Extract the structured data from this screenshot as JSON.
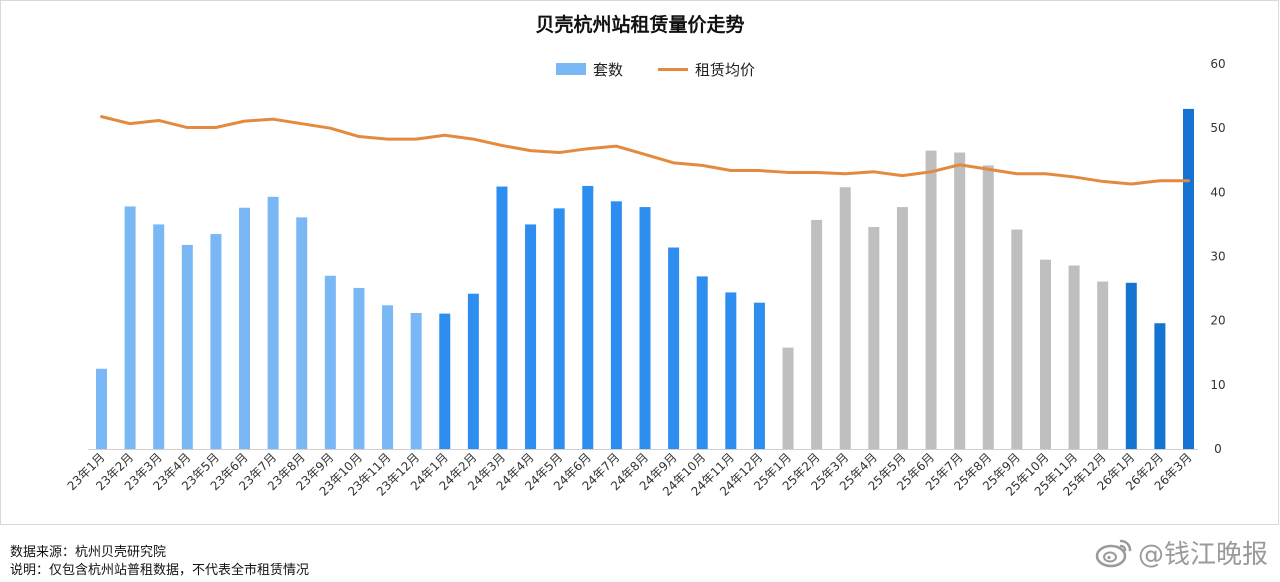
{
  "chart_data": {
    "type": "bar",
    "title": "贝壳杭州站租赁量价走势",
    "xlabel": "",
    "ylabel": "",
    "categories": [
      "23年1月",
      "23年2月",
      "23年3月",
      "23年4月",
      "23年5月",
      "23年6月",
      "23年7月",
      "23年8月",
      "23年9月",
      "23年10月",
      "23年11月",
      "23年12月",
      "24年1月",
      "24年2月",
      "24年3月",
      "24年4月",
      "24年5月",
      "24年6月",
      "24年7月",
      "24年8月",
      "24年9月",
      "24年10月",
      "24年11月",
      "24年12月",
      "25年1月",
      "25年2月",
      "25年3月",
      "25年4月",
      "25年5月",
      "25年6月",
      "25年7月",
      "25年8月",
      "25年9月",
      "25年10月",
      "25年11月",
      "25年12月",
      "26年1月",
      "26年2月",
      "26年3月"
    ],
    "series": [
      {
        "name": "套数",
        "type": "bar",
        "values": [
          12.5,
          37.8,
          35.0,
          31.8,
          33.5,
          37.6,
          39.3,
          36.1,
          27.0,
          25.1,
          22.4,
          21.2,
          21.1,
          24.2,
          40.9,
          35.0,
          37.5,
          41.0,
          38.6,
          37.7,
          31.4,
          26.9,
          24.4,
          22.8,
          15.8,
          35.7,
          40.8,
          34.6,
          37.7,
          46.5,
          46.2,
          44.2,
          34.2,
          29.5,
          28.6,
          26.1,
          25.9,
          19.6,
          53.0
        ],
        "colors": [
          "#7ab8f5",
          "#7ab8f5",
          "#7ab8f5",
          "#7ab8f5",
          "#7ab8f5",
          "#7ab8f5",
          "#7ab8f5",
          "#7ab8f5",
          "#7ab8f5",
          "#7ab8f5",
          "#7ab8f5",
          "#7ab8f5",
          "#2e8ef0",
          "#2e8ef0",
          "#2e8ef0",
          "#2e8ef0",
          "#2e8ef0",
          "#2e8ef0",
          "#2e8ef0",
          "#2e8ef0",
          "#2e8ef0",
          "#2e8ef0",
          "#2e8ef0",
          "#2e8ef0",
          "#bfbfbf",
          "#bfbfbf",
          "#bfbfbf",
          "#bfbfbf",
          "#bfbfbf",
          "#bfbfbf",
          "#bfbfbf",
          "#bfbfbf",
          "#bfbfbf",
          "#bfbfbf",
          "#bfbfbf",
          "#bfbfbf",
          "#1573d1",
          "#1573d1",
          "#1573d1"
        ]
      },
      {
        "name": "租赁均价",
        "type": "line",
        "color": "#e38a3f",
        "values": [
          51.8,
          50.7,
          51.2,
          50.1,
          50.1,
          51.1,
          51.4,
          50.7,
          50.0,
          48.7,
          48.3,
          48.3,
          48.9,
          48.3,
          47.3,
          46.5,
          46.2,
          46.8,
          47.2,
          45.9,
          44.6,
          44.2,
          43.4,
          43.4,
          43.1,
          43.1,
          42.9,
          43.2,
          42.6,
          43.2,
          44.3,
          43.6,
          42.9,
          42.9,
          42.4,
          41.7,
          41.3,
          41.8,
          41.8
        ]
      }
    ],
    "y_right": {
      "ticks": [
        0,
        10,
        20,
        30,
        40,
        50,
        60
      ],
      "ylim": [
        0,
        60
      ]
    },
    "grid": false,
    "legend_position": "top-center"
  },
  "footer": {
    "source": "数据来源：杭州贝壳研究院",
    "note": "说明：仅包含杭州站普租数据，不代表全市租赁情况"
  },
  "watermark": {
    "text": "@钱江晚报",
    "icon": "weibo-icon"
  }
}
